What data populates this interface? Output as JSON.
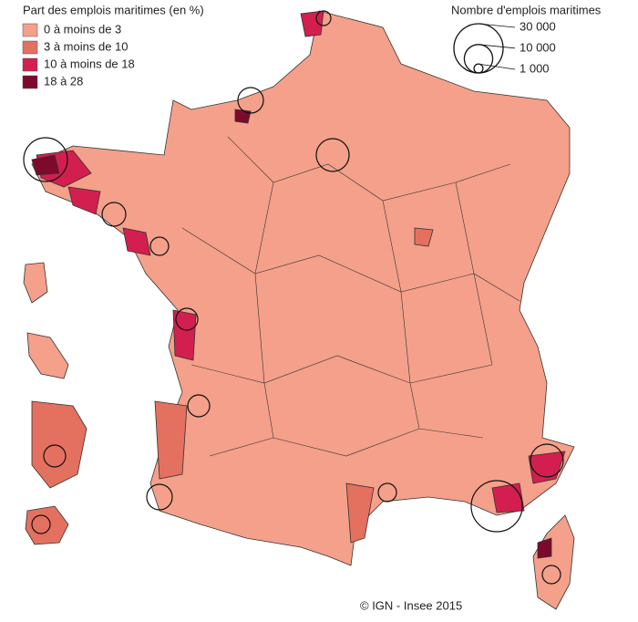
{
  "legend_share": {
    "title": "Part des emplois maritimes (en %)",
    "items": [
      {
        "label": "0 à moins de 3",
        "color": "#f4a08a"
      },
      {
        "label": "3 à moins de 10",
        "color": "#e4705f"
      },
      {
        "label": "10 à moins de 18",
        "color": "#d21f4f"
      },
      {
        "label": "18 à 28",
        "color": "#7d0a2c"
      }
    ]
  },
  "legend_size": {
    "title": "Nombre d'emplois maritimes",
    "items": [
      {
        "value": 30000,
        "label": "30 000"
      },
      {
        "value": 10000,
        "label": "10 000"
      },
      {
        "value": 1000,
        "label": "1 000"
      }
    ]
  },
  "source": "© IGN - Insee 2015"
}
